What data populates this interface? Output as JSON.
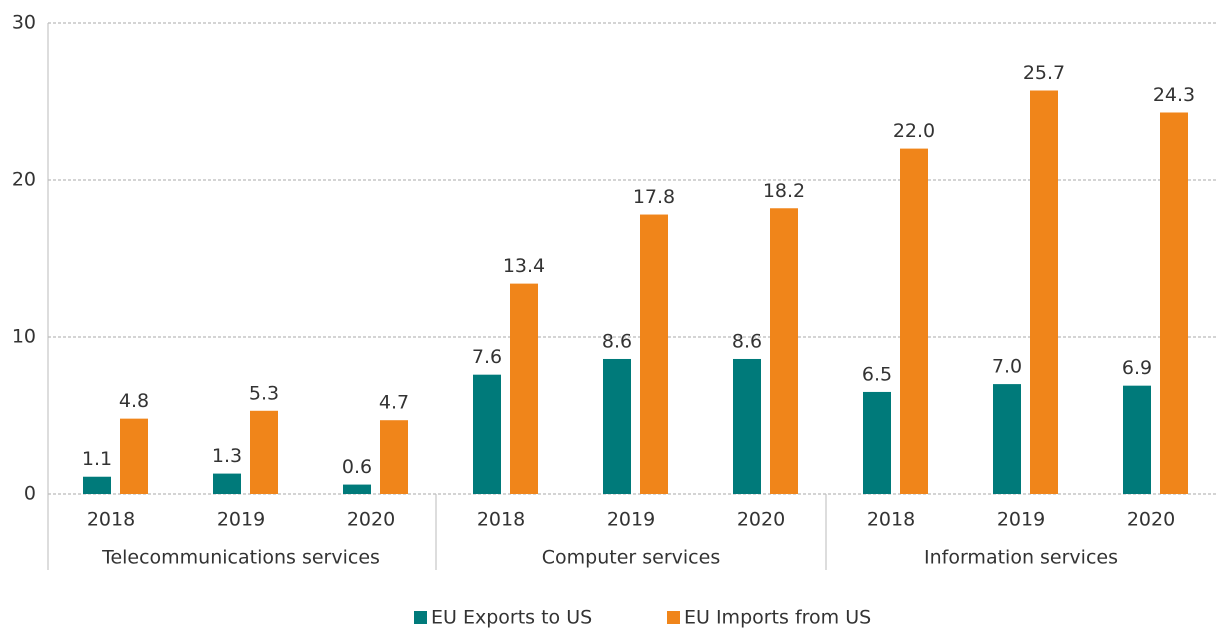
{
  "chart_data": {
    "type": "bar",
    "categories": [
      "2018",
      "2019",
      "2020",
      "2018",
      "2019",
      "2020",
      "2018",
      "2019",
      "2020"
    ],
    "groups": [
      "Telecommunications services",
      "Computer services",
      "Information services"
    ],
    "series": [
      {
        "name": "EU Exports to US",
        "color": "#007a7a",
        "values": [
          1.1,
          1.3,
          0.6,
          7.6,
          8.6,
          8.6,
          6.5,
          7.0,
          6.9
        ],
        "value_labels": [
          "1.1",
          "1.3",
          "0.6",
          "7.6",
          "8.6",
          "8.6",
          "6.5",
          "7.0",
          "6.9"
        ]
      },
      {
        "name": "EU Imports from US",
        "color": "#f0851a",
        "values": [
          4.8,
          5.3,
          4.7,
          13.4,
          17.8,
          18.2,
          22.0,
          25.7,
          24.3
        ],
        "value_labels": [
          "4.8",
          "5.3",
          "4.7",
          "13.4",
          "17.8",
          "18.2",
          "22.0",
          "25.7",
          "24.3"
        ]
      }
    ],
    "ylim": [
      0,
      30
    ],
    "yticks": [
      0,
      10,
      20,
      30
    ],
    "grid": true,
    "legend": "bottom"
  }
}
